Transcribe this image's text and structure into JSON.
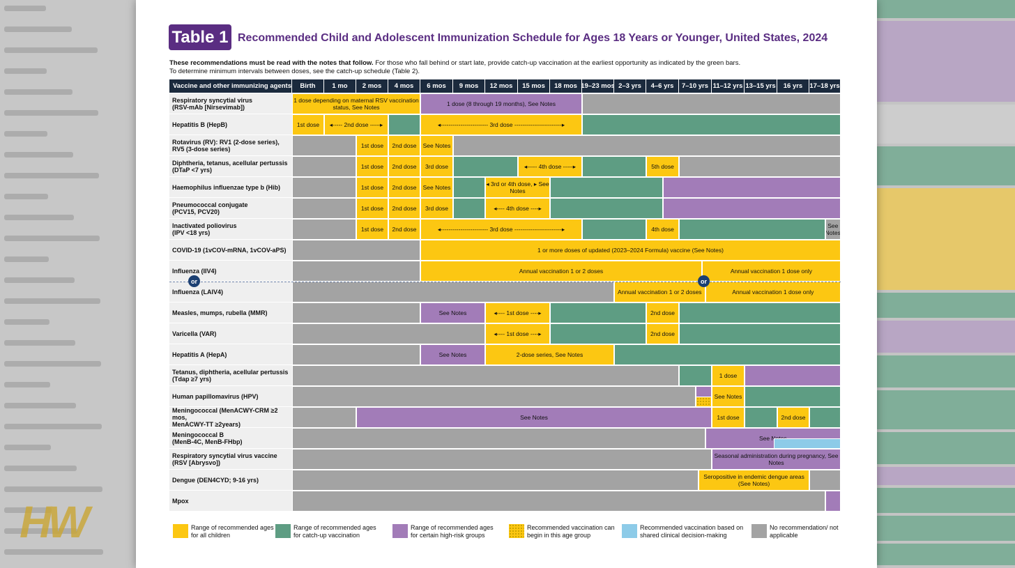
{
  "table_badge": "Table 1",
  "title": "Recommended Child and Adolescent Immunization Schedule for Ages 18 Years or Younger, United States, 2024",
  "intro": {
    "bold": "These recommendations must be read with the notes that follow.",
    "text1": " For those who fall behind or start late, provide catch-up vaccination at the earliest opportunity as indicated by the green bars.",
    "text2": "To determine minimum intervals between doses, see the catch-up schedule (Table 2)."
  },
  "header": {
    "first": "Vaccine and other immunizing agents",
    "ages": [
      "Birth",
      "1 mo",
      "2 mos",
      "4 mos",
      "6 mos",
      "9 mos",
      "12 mos",
      "15 mos",
      "18 mos",
      "19–23 mos",
      "2–3 yrs",
      "4–6 yrs",
      "7–10 yrs",
      "11–12 yrs",
      "13–15 yrs",
      "16 yrs",
      "17–18 yrs"
    ]
  },
  "rows": [
    {
      "name": "Respiratory syncytial virus",
      "sub": "(RSV-mAb [Nirsevimab])",
      "segs": [
        [
          "Y",
          0,
          4,
          "1 dose depending on maternal RSV vaccination status, See Notes"
        ],
        [
          "P",
          4,
          9,
          "1 dose (8 through 19 months), See Notes"
        ],
        [
          "N",
          9,
          17,
          ""
        ]
      ]
    },
    {
      "name": "Hepatitis B (HepB)",
      "sub": "",
      "segs": [
        [
          "Y",
          0,
          1,
          "1st dose"
        ],
        [
          "Y",
          1,
          3,
          "◂----- 2nd dose -----▸"
        ],
        [
          "G",
          3,
          4,
          ""
        ],
        [
          "Y",
          4,
          9,
          "◂------------------------ 3rd dose ------------------------▸"
        ],
        [
          "G",
          9,
          17,
          ""
        ]
      ]
    },
    {
      "name": "Rotavirus (RV): RV1 (2-dose series),",
      "sub": "RV5 (3-dose series)",
      "segs": [
        [
          "N",
          0,
          2,
          ""
        ],
        [
          "Y",
          2,
          3,
          "1st dose"
        ],
        [
          "Y",
          3,
          4,
          "2nd dose"
        ],
        [
          "Y",
          4,
          5,
          "See Notes"
        ],
        [
          "N",
          5,
          17,
          ""
        ]
      ]
    },
    {
      "name": "Diphtheria, tetanus, acellular pertussis",
      "sub": "(DTaP <7 yrs)",
      "segs": [
        [
          "N",
          0,
          2,
          ""
        ],
        [
          "Y",
          2,
          3,
          "1st dose"
        ],
        [
          "Y",
          3,
          4,
          "2nd dose"
        ],
        [
          "Y",
          4,
          5,
          "3rd dose"
        ],
        [
          "G",
          5,
          7,
          ""
        ],
        [
          "Y",
          7,
          9,
          "◂----- 4th dose -----▸"
        ],
        [
          "G",
          9,
          11,
          ""
        ],
        [
          "Y",
          11,
          12,
          "5th dose"
        ],
        [
          "N",
          12,
          17,
          ""
        ]
      ]
    },
    {
      "name": "Haemophilus influenzae type b (Hib)",
      "sub": "",
      "segs": [
        [
          "N",
          0,
          2,
          ""
        ],
        [
          "Y",
          2,
          3,
          "1st dose"
        ],
        [
          "Y",
          3,
          4,
          "2nd dose"
        ],
        [
          "Y",
          4,
          5,
          "See Notes"
        ],
        [
          "G",
          5,
          6,
          ""
        ],
        [
          "Y",
          6,
          8,
          "◂ 3rd or 4th dose, ▸ See Notes"
        ],
        [
          "G",
          8,
          11.5,
          ""
        ],
        [
          "P",
          11.5,
          17,
          ""
        ]
      ]
    },
    {
      "name": "Pneumococcal conjugate",
      "sub": "(PCV15, PCV20)",
      "segs": [
        [
          "N",
          0,
          2,
          ""
        ],
        [
          "Y",
          2,
          3,
          "1st dose"
        ],
        [
          "Y",
          3,
          4,
          "2nd dose"
        ],
        [
          "Y",
          4,
          5,
          "3rd dose"
        ],
        [
          "G",
          5,
          6,
          ""
        ],
        [
          "Y",
          6,
          8,
          "◂---- 4th dose ----▸"
        ],
        [
          "G",
          8,
          11.5,
          ""
        ],
        [
          "P",
          11.5,
          17,
          ""
        ]
      ]
    },
    {
      "name": "Inactivated poliovirus",
      "sub": "(IPV <18 yrs)",
      "segs": [
        [
          "N",
          0,
          2,
          ""
        ],
        [
          "Y",
          2,
          3,
          "1st dose"
        ],
        [
          "Y",
          3,
          4,
          "2nd dose"
        ],
        [
          "Y",
          4,
          9,
          "◂------------------------ 3rd dose ------------------------▸"
        ],
        [
          "G",
          9,
          11,
          ""
        ],
        [
          "Y",
          11,
          12,
          "4th dose"
        ],
        [
          "G",
          12,
          16.5,
          ""
        ],
        [
          "N",
          16.5,
          17,
          "See Notes"
        ]
      ]
    },
    {
      "name": "COVID-19 (1vCOV-mRNA, 1vCOV-aPS)",
      "sub": "",
      "segs": [
        [
          "N",
          0,
          4,
          ""
        ],
        [
          "Y",
          4,
          17,
          "1 or more doses of updated (2023–2024 Formula) vaccine (See Notes)"
        ]
      ]
    },
    {
      "name": "Influenza (IIV4)",
      "sub": "",
      "segs": [
        [
          "N",
          0,
          4,
          ""
        ],
        [
          "Y",
          4,
          12.7,
          "Annual vaccination 1 or 2 doses"
        ],
        [
          "Y",
          12.7,
          17,
          "Annual vaccination 1 dose only"
        ]
      ]
    },
    {
      "name": "Influenza (LAIV4)",
      "sub": "",
      "segs": [
        [
          "N",
          0,
          10,
          ""
        ],
        [
          "Y",
          10,
          12.8,
          "Annual vaccination 1 or 2 doses"
        ],
        [
          "Y",
          12.8,
          17,
          "Annual vaccination 1 dose only"
        ]
      ]
    },
    {
      "name": "Measles, mumps, rubella (MMR)",
      "sub": "",
      "segs": [
        [
          "N",
          0,
          4,
          ""
        ],
        [
          "P",
          4,
          6,
          "See Notes"
        ],
        [
          "Y",
          6,
          8,
          "◂---- 1st dose ----▸"
        ],
        [
          "G",
          8,
          11,
          ""
        ],
        [
          "Y",
          11,
          12,
          "2nd dose"
        ],
        [
          "G",
          12,
          17,
          ""
        ]
      ]
    },
    {
      "name": "Varicella (VAR)",
      "sub": "",
      "segs": [
        [
          "N",
          0,
          6,
          ""
        ],
        [
          "Y",
          6,
          8,
          "◂---- 1st dose ----▸"
        ],
        [
          "G",
          8,
          11,
          ""
        ],
        [
          "Y",
          11,
          12,
          "2nd dose"
        ],
        [
          "G",
          12,
          17,
          ""
        ]
      ]
    },
    {
      "name": "Hepatitis A (HepA)",
      "sub": "",
      "segs": [
        [
          "N",
          0,
          4,
          ""
        ],
        [
          "P",
          4,
          6,
          "See Notes"
        ],
        [
          "Y",
          6,
          10,
          "2-dose series, See Notes"
        ],
        [
          "G",
          10,
          17,
          ""
        ]
      ]
    },
    {
      "name": "Tetanus, diphtheria, acellular pertussis",
      "sub": "(Tdap ≥7 yrs)",
      "segs": [
        [
          "N",
          0,
          12,
          ""
        ],
        [
          "G",
          12,
          13,
          ""
        ],
        [
          "Y",
          13,
          14,
          "1 dose"
        ],
        [
          "P",
          14,
          17,
          ""
        ]
      ]
    },
    {
      "name": "Human papillomavirus (HPV)",
      "sub": "",
      "segs": [
        [
          "N",
          0,
          12.5,
          ""
        ],
        [
          "P",
          12.5,
          13,
          ""
        ],
        [
          "Y",
          13,
          14,
          "See Notes"
        ],
        [
          "G",
          14,
          17,
          ""
        ]
      ]
    },
    {
      "name": "Meningococcal (MenACWY-CRM ≥2 mos,",
      "sub": "MenACWY-TT ≥2years)",
      "segs": [
        [
          "N",
          0,
          2,
          ""
        ],
        [
          "P",
          2,
          13,
          "See Notes"
        ],
        [
          "Y",
          13,
          14,
          "1st dose"
        ],
        [
          "G",
          14,
          15,
          ""
        ],
        [
          "Y",
          15,
          16,
          "2nd dose"
        ],
        [
          "G",
          16,
          17,
          ""
        ]
      ]
    },
    {
      "name": "Meningococcal B",
      "sub": "(MenB-4C, MenB-FHbp)",
      "segs": [
        [
          "N",
          0,
          12.8,
          ""
        ],
        [
          "P",
          12.8,
          17,
          "See Notes"
        ]
      ]
    },
    {
      "name": "Respiratory syncytial virus vaccine",
      "sub": "(RSV [Abrysvo])",
      "segs": [
        [
          "N",
          0,
          13,
          ""
        ],
        [
          "P",
          13,
          17,
          "Seasonal administration during pregnancy, See Notes"
        ]
      ]
    },
    {
      "name": "Dengue (DEN4CYD; 9-16 yrs)",
      "sub": "",
      "segs": [
        [
          "N",
          0,
          12.6,
          ""
        ],
        [
          "Y",
          12.6,
          16,
          "Seropositive in endemic dengue areas (See Notes)"
        ],
        [
          "N",
          16,
          17,
          ""
        ]
      ]
    },
    {
      "name": "Mpox",
      "sub": "",
      "segs": [
        [
          "N",
          0,
          16.5,
          ""
        ],
        [
          "P",
          16.5,
          17,
          ""
        ]
      ]
    }
  ],
  "or_label": "or",
  "legend": [
    {
      "key": "Y",
      "text": "Range of recommended ages for all children"
    },
    {
      "key": "G",
      "text": "Range of recommended ages for catch-up vaccination"
    },
    {
      "key": "P",
      "text": "Range of recommended ages for certain high-risk groups"
    },
    {
      "key": "Q",
      "text": "Recommended vaccination can begin in this age group"
    },
    {
      "key": "B",
      "text": "Recommended vaccination based on shared clinical decision-making"
    },
    {
      "key": "N",
      "text": "No recommendation/ not applicable"
    }
  ],
  "logo_text": "HW"
}
